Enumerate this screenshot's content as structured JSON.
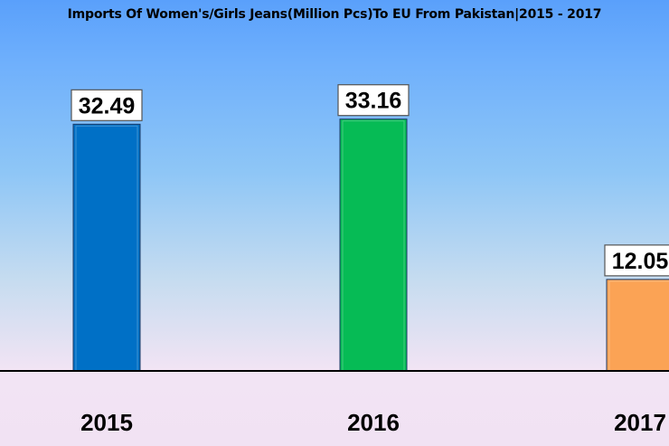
{
  "chart_data": {
    "type": "bar",
    "title": "Imports Of Women's/Girls Jeans(Million Pcs)To EU From Pakistan|2015 - 2017",
    "categories": [
      "2015",
      "2016",
      "2017"
    ],
    "values": [
      32.49,
      33.16,
      12.05
    ],
    "value_labels": [
      "32.49",
      "33.16",
      "12.05"
    ],
    "bar_colors": [
      "#0070c6",
      "#06bb55",
      "#fba355"
    ],
    "ylim": [
      0,
      33.6
    ],
    "grid": false,
    "legend": "none",
    "xlabel": "",
    "ylabel": ""
  }
}
